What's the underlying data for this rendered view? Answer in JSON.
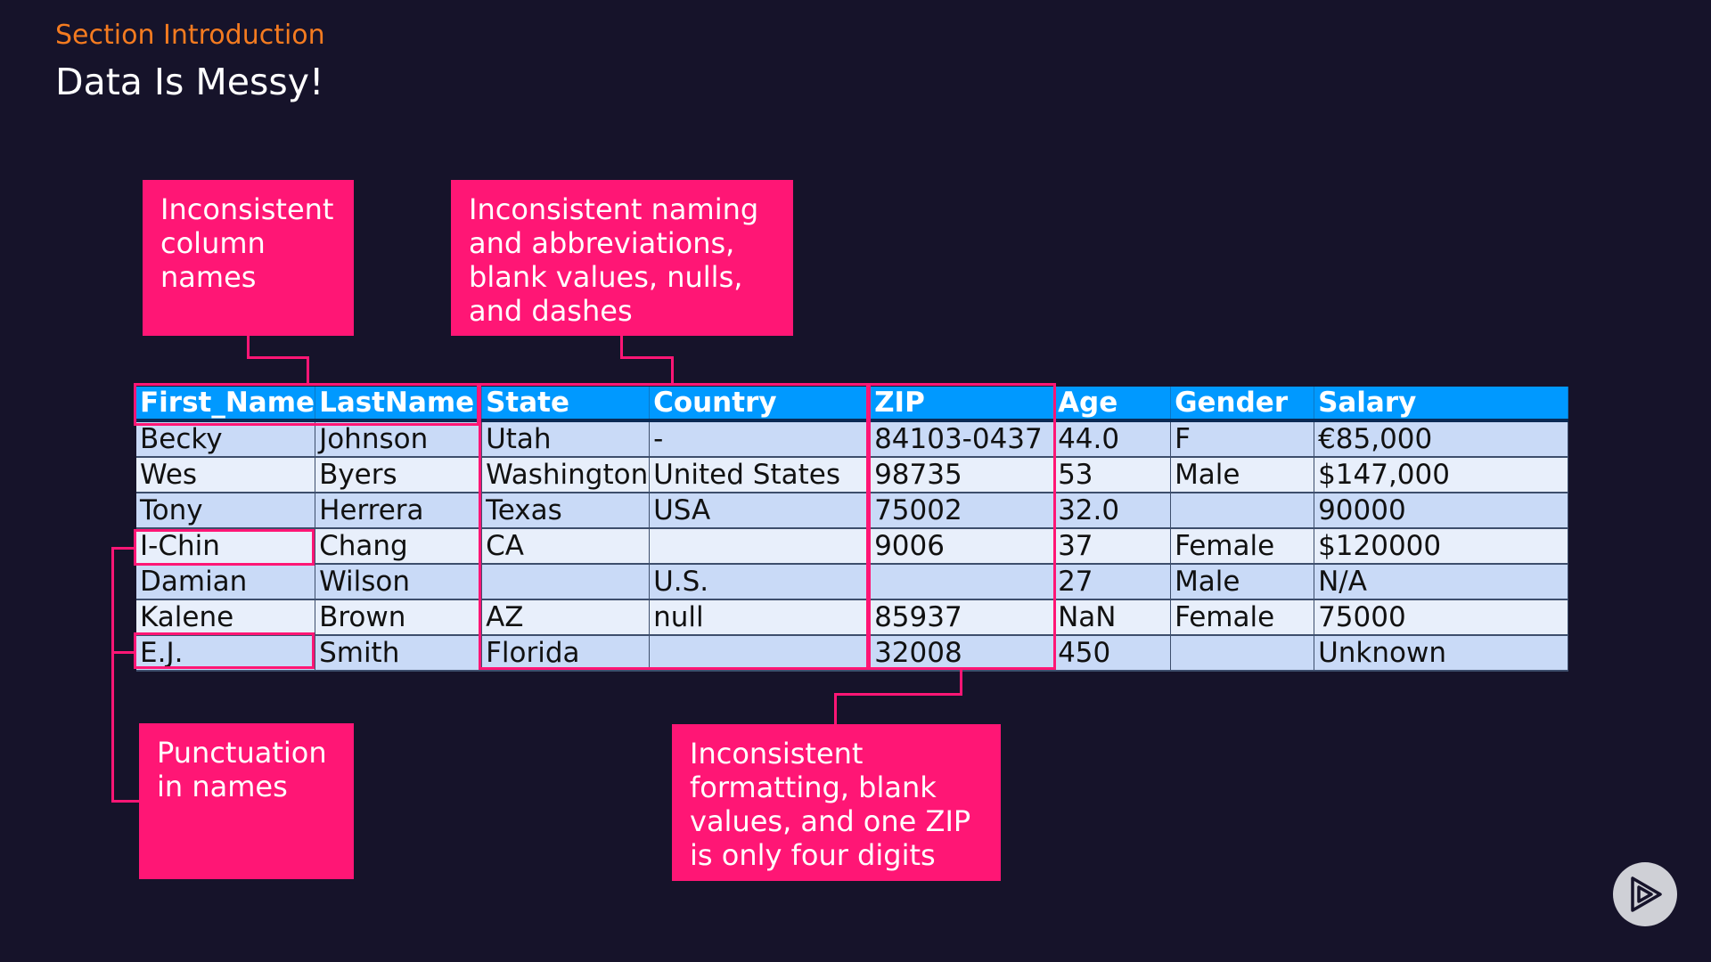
{
  "header": {
    "section": "Section Introduction",
    "title": "Data Is Messy!"
  },
  "callouts": {
    "column_names": "Inconsistent\ncolumn\nnames",
    "naming": "Inconsistent naming\nand abbreviations,\nblank values, nulls,\nand dashes",
    "punctuation": "Punctuation\nin names",
    "zip": "Inconsistent\nformatting, blank\nvalues, and one ZIP\nis only four digits"
  },
  "table": {
    "headers": [
      "First_Name",
      "LastName",
      "State",
      "Country",
      "ZIP",
      "Age",
      "Gender",
      "Salary"
    ],
    "rows": [
      [
        "Becky",
        "Johnson",
        "Utah",
        "-",
        "84103-0437",
        "44.0",
        "F",
        "€85,000"
      ],
      [
        "Wes",
        "Byers",
        "Washington",
        "United States",
        "98735",
        "53",
        "Male",
        "$147,000"
      ],
      [
        "Tony",
        "Herrera",
        "Texas",
        "USA",
        "75002",
        "32.0",
        "",
        "90000"
      ],
      [
        "I-Chin",
        "Chang",
        "CA",
        "",
        "9006",
        "37",
        "Female",
        "$120000"
      ],
      [
        "Damian",
        "Wilson",
        "",
        "U.S.",
        "",
        "27",
        "Male",
        "N/A"
      ],
      [
        "Kalene",
        "Brown",
        "AZ",
        "null",
        "85937",
        "NaN",
        "Female",
        "75000"
      ],
      [
        "E.J.",
        "Smith",
        "Florida",
        "",
        "32008",
        "450",
        "",
        "Unknown"
      ]
    ]
  },
  "colors": {
    "background": "#16132a",
    "accent_orange": "#f47b20",
    "highlight_pink": "#ff1675",
    "header_blue": "#0099ff",
    "row_odd": "#c9daf7",
    "row_even": "#e8effb"
  },
  "icons": {
    "play": "play-logo-icon"
  }
}
